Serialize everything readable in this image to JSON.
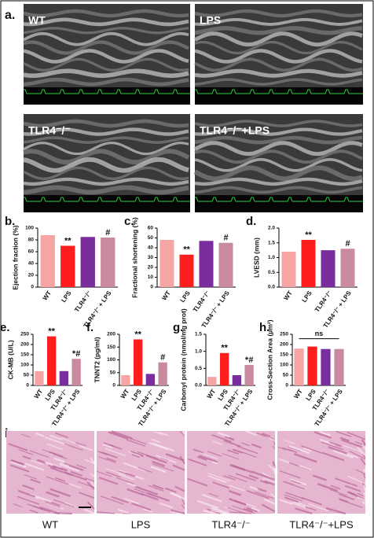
{
  "echo": {
    "label": "a.",
    "panels": [
      "WT",
      "LPS",
      "TLR4⁻/⁻",
      "TLR4⁻/⁻+LPS"
    ]
  },
  "histology": {
    "label": "i.",
    "panels": [
      "WT",
      "LPS",
      "TLR4⁻/⁻",
      "TLR4⁻/⁻+LPS"
    ]
  },
  "chart_data": [
    {
      "type": "bar",
      "label": "b.",
      "ylabel": "Ejection fraction (%)",
      "categories": [
        "WT",
        "LPS",
        "TLR4⁻/⁻",
        "TLR4⁻/⁻ + LPS"
      ],
      "values": [
        88,
        70,
        85,
        84
      ],
      "colors": [
        "#f6a5a5",
        "#ff1e1e",
        "#7a2e9e",
        "#c98aa0"
      ],
      "annotations": [
        null,
        "**",
        null,
        "#"
      ],
      "ylim": [
        0,
        100
      ],
      "yticks": [
        0,
        20,
        40,
        60,
        80,
        100
      ]
    },
    {
      "type": "bar",
      "label": "c.",
      "ylabel": "Fractional shortening (%)",
      "categories": [
        "WT",
        "LPS",
        "TLR4⁻/⁻",
        "TLR4⁻/⁻ + LPS"
      ],
      "values": [
        48,
        33,
        47,
        45
      ],
      "colors": [
        "#f6a5a5",
        "#ff1e1e",
        "#7a2e9e",
        "#c98aa0"
      ],
      "annotations": [
        null,
        "**",
        null,
        "#"
      ],
      "ylim": [
        0,
        60
      ],
      "yticks": [
        0,
        10,
        20,
        30,
        40,
        50,
        60
      ]
    },
    {
      "type": "bar",
      "label": "d.",
      "ylabel": "LVESD (mm)",
      "categories": [
        "WT",
        "LPS",
        "TLR4⁻/⁻",
        "TLR4⁻/⁻ + LPS"
      ],
      "values": [
        1.2,
        1.6,
        1.25,
        1.3
      ],
      "colors": [
        "#f6a5a5",
        "#ff1e1e",
        "#7a2e9e",
        "#c98aa0"
      ],
      "annotations": [
        null,
        "**",
        null,
        "#"
      ],
      "ylim": [
        0,
        2
      ],
      "yticks": [
        {
          "value": 0,
          "label": "0.0"
        },
        0.5,
        {
          "value": 1,
          "label": "1.0"
        },
        1.5,
        {
          "value": 2,
          "label": "2.0"
        }
      ]
    },
    {
      "type": "bar",
      "label": "e.",
      "ylabel": "CK-MB (U/L)",
      "categories": [
        "WT",
        "LPS",
        "TLR4⁻/⁻",
        "TLR4⁻/⁻ + LPS"
      ],
      "values": [
        70,
        240,
        70,
        130
      ],
      "colors": [
        "#f6a5a5",
        "#ff1e1e",
        "#7a2e9e",
        "#c98aa0"
      ],
      "annotations": [
        null,
        "**",
        null,
        "*#"
      ],
      "ylim": [
        0,
        250
      ],
      "yticks": [
        0,
        50,
        100,
        150,
        200,
        250
      ]
    },
    {
      "type": "bar",
      "label": "f.",
      "ylabel": "TNNT2 (pg/ml)",
      "categories": [
        "WT",
        "LPS",
        "TLR4⁻/⁻",
        "TLR4⁻/⁻ + LPS"
      ],
      "values": [
        40,
        180,
        45,
        90
      ],
      "colors": [
        "#f6a5a5",
        "#ff1e1e",
        "#7a2e9e",
        "#c98aa0"
      ],
      "annotations": [
        null,
        "**",
        null,
        "#"
      ],
      "ylim": [
        0,
        200
      ],
      "yticks": [
        0,
        50,
        100,
        150,
        200
      ]
    },
    {
      "type": "bar",
      "label": "g.",
      "ylabel": "Carbonyl protein (nmol/mg prot)",
      "categories": [
        "WT",
        "LPS",
        "TLR4⁻/⁻",
        "TLR4⁻/⁻ + LPS"
      ],
      "values": [
        0.25,
        0.95,
        0.3,
        0.6
      ],
      "colors": [
        "#f6a5a5",
        "#ff1e1e",
        "#7a2e9e",
        "#c98aa0"
      ],
      "annotations": [
        null,
        "**",
        null,
        "*#"
      ],
      "ylim": [
        0,
        1.5
      ],
      "yticks": [
        {
          "value": 0,
          "label": "0.0"
        },
        0.5,
        {
          "value": 1,
          "label": "1.0"
        },
        1.5
      ]
    },
    {
      "type": "bar",
      "label": "h.",
      "ylabel": "Cross-Section Area (μm²)",
      "categories": [
        "WT",
        "LPS",
        "TLR4⁻/⁻",
        "TLR4⁻/⁻ + LPS"
      ],
      "values": [
        180,
        190,
        178,
        178
      ],
      "colors": [
        "#f6a5a5",
        "#ff1e1e",
        "#7a2e9e",
        "#c98aa0"
      ],
      "bracket_label": "ns",
      "ylim": [
        0,
        250
      ],
      "yticks": [
        0,
        50,
        100,
        150,
        200,
        250
      ]
    }
  ]
}
